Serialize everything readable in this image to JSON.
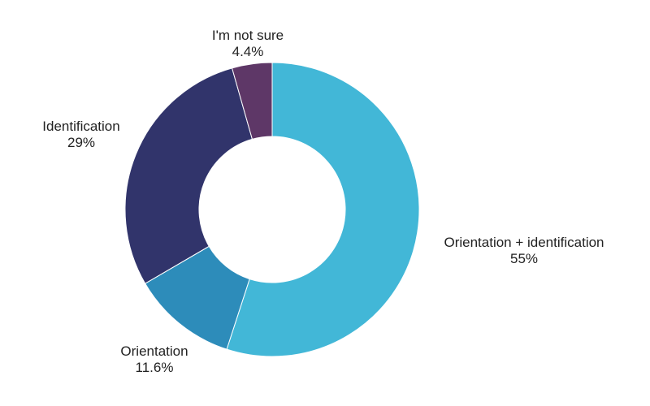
{
  "chart_data": {
    "type": "pie",
    "title": "",
    "categories": [
      "Orientation + identification",
      "Orientation",
      "Identification",
      "I'm not sure"
    ],
    "values": [
      55,
      11.6,
      29,
      4.4
    ],
    "value_labels": [
      "55%",
      "11.6%",
      "29%",
      "4.4%"
    ],
    "colors": [
      "#42b7d7",
      "#2d8cba",
      "#31346b",
      "#5e3767"
    ],
    "legend": "none",
    "style": "donut"
  }
}
